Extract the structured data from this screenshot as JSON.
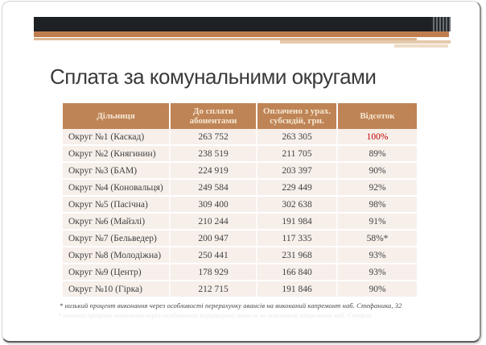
{
  "slide": {
    "title": "Сплата за комунальними округами",
    "footnote": "* низький процент виконання через особливості перерахунку авансів на виконаний капремонт наб. Стефаника, 32"
  },
  "table": {
    "headers": [
      "Дільниця",
      "До сплати абонентами",
      "Оплачено з урах. субсидій, грн.",
      "Відсоток"
    ],
    "rows": [
      {
        "district": "Округ №1 (Каскад)",
        "due": "263 752",
        "paid": "263 305",
        "percent": "100%",
        "highlight": true
      },
      {
        "district": "Округ №2 (Княгинин)",
        "due": "238 519",
        "paid": "211 705",
        "percent": "89%",
        "highlight": false
      },
      {
        "district": "Округ №3 (БАМ)",
        "due": "224 919",
        "paid": "203 397",
        "percent": "90%",
        "highlight": false
      },
      {
        "district": "Округ №4 (Коновальця)",
        "due": "249 584",
        "paid": "229 449",
        "percent": "92%",
        "highlight": false
      },
      {
        "district": "Округ №5 (Пасічна)",
        "due": "309 400",
        "paid": "302 638",
        "percent": "98%",
        "highlight": false
      },
      {
        "district": "Округ №6 (Майзлі)",
        "due": "210 244",
        "paid": "191 984",
        "percent": "91%",
        "highlight": false
      },
      {
        "district": "Округ №7 (Бельведер)",
        "due": "200 947",
        "paid": "117 335",
        "percent": "58%*",
        "highlight": false
      },
      {
        "district": "Округ №8 (Молодіжна)",
        "due": "250 441",
        "paid": "231 968",
        "percent": "93%",
        "highlight": false
      },
      {
        "district": "Округ №9 (Центр)",
        "due": "178 929",
        "paid": "166 840",
        "percent": "93%",
        "highlight": false
      },
      {
        "district": "Округ №10 (Гірка)",
        "due": "212 715",
        "paid": "191 846",
        "percent": "90%",
        "highlight": false
      }
    ]
  },
  "colors": {
    "header_bg": "#bf8456",
    "header_text": "#f5e7d3",
    "row_bg": "#f7efea",
    "body_text": "#3f3f3f",
    "highlight_percent": "#c00000",
    "accent_orange": "#c07e4e",
    "banner_black": "#1e2124"
  }
}
